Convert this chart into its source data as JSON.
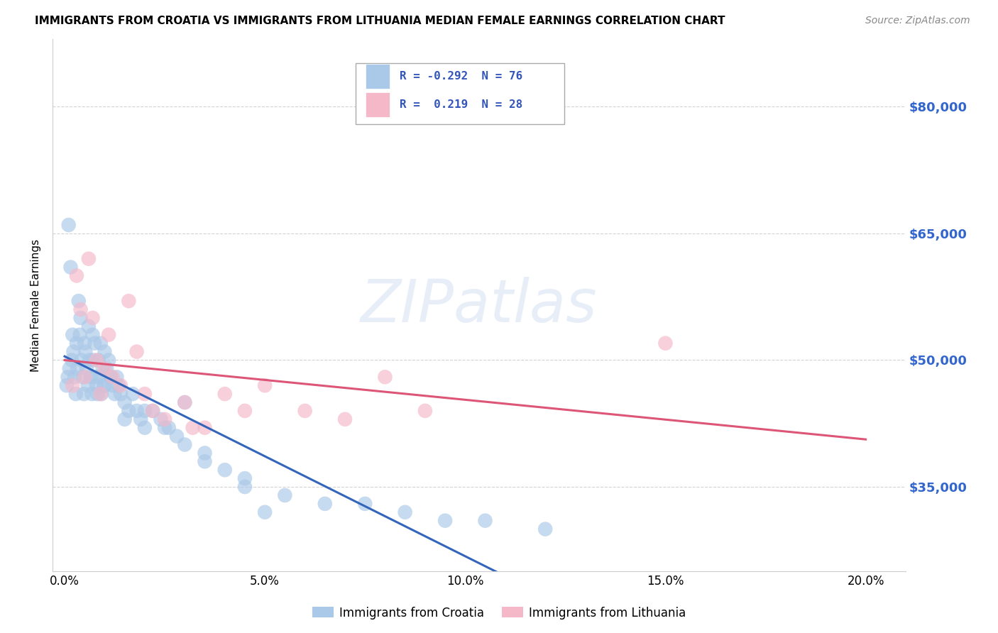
{
  "title": "IMMIGRANTS FROM CROATIA VS IMMIGRANTS FROM LITHUANIA MEDIAN FEMALE EARNINGS CORRELATION CHART",
  "source": "Source: ZipAtlas.com",
  "ylabel": "Median Female Earnings",
  "x_tick_labels": [
    "0.0%",
    "5.0%",
    "10.0%",
    "15.0%",
    "20.0%"
  ],
  "x_tick_vals": [
    0.0,
    5.0,
    10.0,
    15.0,
    20.0
  ],
  "y_tick_labels": [
    "$35,000",
    "$50,000",
    "$65,000",
    "$80,000"
  ],
  "y_tick_vals": [
    35000,
    50000,
    65000,
    80000
  ],
  "ylim": [
    25000,
    88000
  ],
  "xlim": [
    -0.3,
    21.0
  ],
  "croatia_color": "#aac8e8",
  "lithuania_color": "#f4b8c8",
  "trend_croatia_color": "#3366bb",
  "trend_lithuania_color": "#dd5577",
  "R_croatia": -0.292,
  "N_croatia": 76,
  "R_lithuania": 0.219,
  "N_lithuania": 28,
  "legend_label_croatia": "Immigrants from Croatia",
  "legend_label_lithuania": "Immigrants from Lithuania",
  "watermark": "ZIPatlas",
  "background_color": "#ffffff",
  "grid_color": "#cccccc",
  "croatia_x": [
    0.05,
    0.08,
    0.1,
    0.12,
    0.15,
    0.18,
    0.2,
    0.22,
    0.25,
    0.28,
    0.3,
    0.32,
    0.35,
    0.38,
    0.4,
    0.42,
    0.45,
    0.48,
    0.5,
    0.52,
    0.55,
    0.58,
    0.6,
    0.62,
    0.65,
    0.68,
    0.7,
    0.72,
    0.75,
    0.78,
    0.8,
    0.82,
    0.85,
    0.88,
    0.9,
    0.92,
    0.95,
    0.98,
    1.0,
    1.05,
    1.1,
    1.15,
    1.2,
    1.25,
    1.3,
    1.35,
    1.4,
    1.5,
    1.6,
    1.7,
    1.8,
    1.9,
    2.0,
    2.2,
    2.4,
    2.6,
    2.8,
    3.0,
    3.5,
    4.0,
    4.5,
    5.5,
    6.5,
    7.5,
    8.5,
    9.5,
    10.5,
    12.0,
    2.0,
    3.0,
    1.5,
    4.5,
    2.5,
    5.0,
    1.0,
    3.5
  ],
  "croatia_y": [
    47000,
    48000,
    66000,
    49000,
    61000,
    50000,
    53000,
    51000,
    48000,
    46000,
    52000,
    49000,
    57000,
    53000,
    55000,
    50000,
    48000,
    46000,
    52000,
    51000,
    49000,
    47000,
    54000,
    50000,
    48000,
    46000,
    53000,
    50000,
    52000,
    48000,
    47000,
    46000,
    50000,
    48000,
    52000,
    46000,
    49000,
    47000,
    51000,
    49000,
    50000,
    48000,
    47000,
    46000,
    48000,
    47000,
    46000,
    45000,
    44000,
    46000,
    44000,
    43000,
    42000,
    44000,
    43000,
    42000,
    41000,
    40000,
    38000,
    37000,
    36000,
    34000,
    33000,
    33000,
    32000,
    31000,
    31000,
    30000,
    44000,
    45000,
    43000,
    35000,
    42000,
    32000,
    47000,
    39000
  ],
  "lithuania_x": [
    0.2,
    0.3,
    0.4,
    0.5,
    0.6,
    0.7,
    0.8,
    0.9,
    1.0,
    1.1,
    1.2,
    1.4,
    1.6,
    1.8,
    2.0,
    2.2,
    2.5,
    3.0,
    3.5,
    4.0,
    4.5,
    5.0,
    6.0,
    7.0,
    8.0,
    9.0,
    3.2,
    15.0
  ],
  "lithuania_y": [
    47000,
    60000,
    56000,
    48000,
    62000,
    55000,
    50000,
    46000,
    49000,
    53000,
    48000,
    47000,
    57000,
    51000,
    46000,
    44000,
    43000,
    45000,
    42000,
    46000,
    44000,
    47000,
    44000,
    43000,
    48000,
    44000,
    42000,
    52000
  ]
}
